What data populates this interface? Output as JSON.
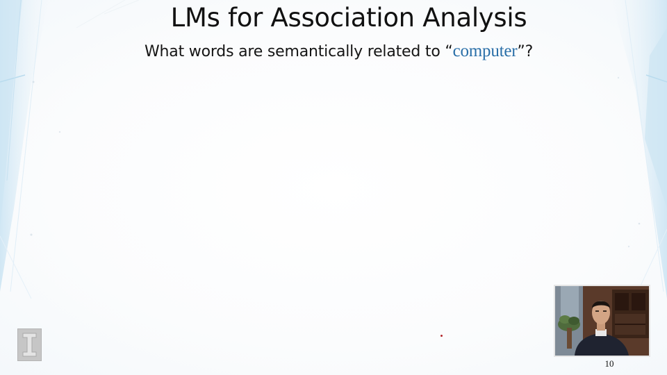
{
  "slide": {
    "title": "LMs for Association Analysis",
    "question": {
      "prefix": "What words are semantically related to “",
      "keyword": "computer",
      "suffix": "”?"
    },
    "page_number": "10"
  },
  "logo": {
    "icon": "university-block-i-icon"
  },
  "webcam": {
    "description": "presenter-video-feed"
  },
  "colors": {
    "keyword": "#2a6fa8",
    "text": "#111111",
    "accent_decor": "#d3e9f6"
  }
}
